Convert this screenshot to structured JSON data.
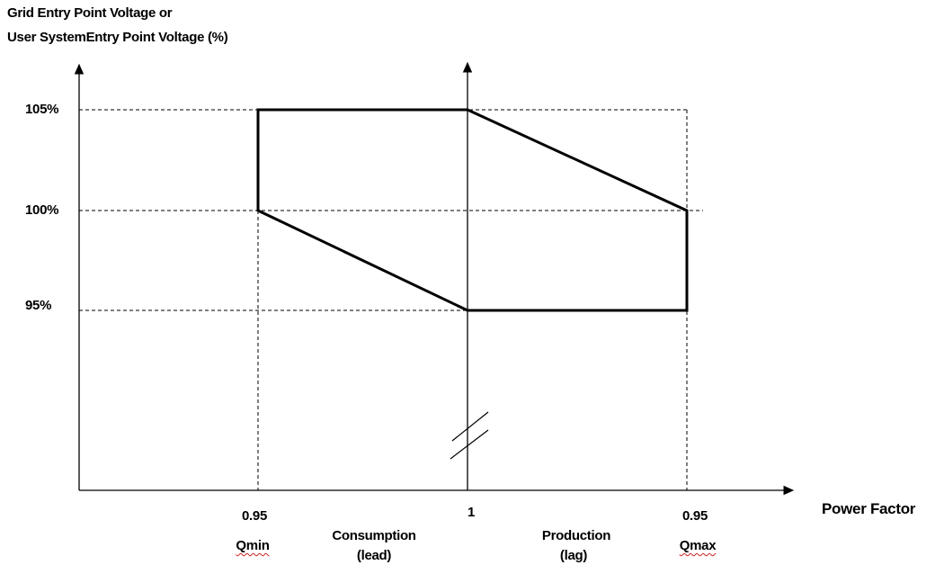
{
  "y_axis_title": {
    "line1": "Grid Entry Point Voltage or",
    "line2": "User SystemEntry Point Voltage (%)"
  },
  "x_axis_title": "Power Factor",
  "y_ticks": {
    "t105": "105%",
    "t100": "100%",
    "t95": "95%"
  },
  "x_ticks": {
    "left_pf": "0.95",
    "center_pf": "1",
    "right_pf": "0.95"
  },
  "bottom_labels": {
    "qmin": "Qmin",
    "qmax": "Qmax",
    "consumption_line1": "Consumption",
    "consumption_line2": "(lead)",
    "production_line1": "Production",
    "production_line2": "(lag)"
  },
  "colors": {
    "ink": "#000000",
    "spellcheck": "#d02020",
    "background": "#ffffff"
  }
}
